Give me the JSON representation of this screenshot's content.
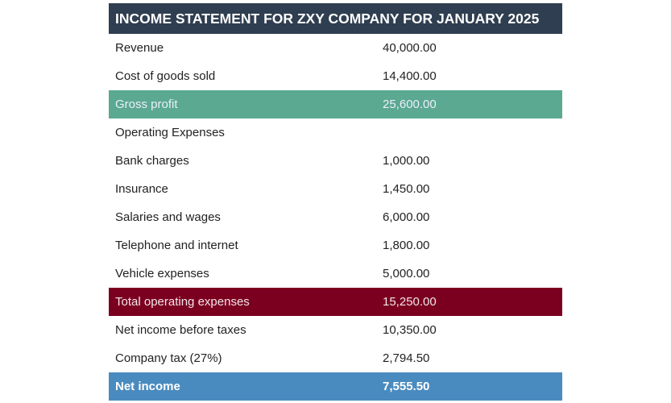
{
  "title": "INCOME STATEMENT FOR ZXY COMPANY FOR JANUARY 2025",
  "colors": {
    "header": "#2f3e50",
    "gross_profit": "#5aa990",
    "total_operating_expenses": "#7b0020",
    "net_income": "#4a8bbf"
  },
  "rows": [
    {
      "label": "Revenue",
      "value": "40,000.00",
      "style": ""
    },
    {
      "label": "Cost of goods sold",
      "value": "14,400.00",
      "style": ""
    },
    {
      "label": "Gross profit",
      "value": "25,600.00",
      "style": "green"
    },
    {
      "label": "Operating Expenses",
      "value": "",
      "style": ""
    },
    {
      "label": "Bank charges",
      "value": "1,000.00",
      "style": ""
    },
    {
      "label": "Insurance",
      "value": "1,450.00",
      "style": ""
    },
    {
      "label": "Salaries and wages",
      "value": "6,000.00",
      "style": ""
    },
    {
      "label": "Telephone and internet",
      "value": "1,800.00",
      "style": ""
    },
    {
      "label": "Vehicle expenses",
      "value": "5,000.00",
      "style": ""
    },
    {
      "label": "Total operating expenses",
      "value": "15,250.00",
      "style": "red"
    },
    {
      "label": "Net income before taxes",
      "value": "10,350.00",
      "style": ""
    },
    {
      "label": "Company tax (27%)",
      "value": "2,794.50",
      "style": ""
    },
    {
      "label": "Net income",
      "value": "7,555.50",
      "style": "blue"
    }
  ]
}
